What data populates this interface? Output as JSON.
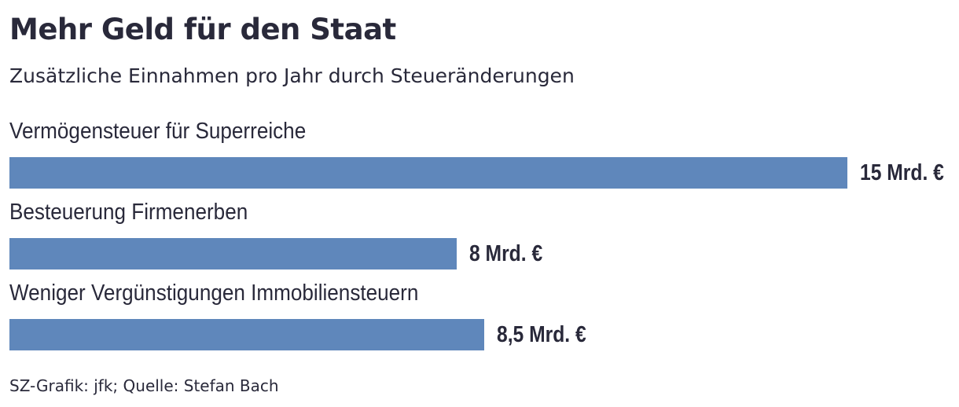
{
  "header": {
    "title": "Mehr Geld für den Staat",
    "subtitle": "Zusätzliche Einnahmen pro Jahr durch Steueränderungen"
  },
  "footer": {
    "source": "SZ-Grafik: jfk; Quelle: Stefan Bach"
  },
  "colors": {
    "bar": "#5f87bb",
    "text": "#29293a"
  },
  "chart_data": {
    "type": "bar",
    "orientation": "horizontal",
    "title": "Mehr Geld für den Staat",
    "subtitle": "Zusätzliche Einnahmen pro Jahr durch Steueränderungen",
    "categories": [
      "Vermögensteuer für Superreiche",
      "Besteuerung Firmenerben",
      "Weniger Vergünstigungen Immobiliensteuern"
    ],
    "values": [
      15,
      8,
      8.5
    ],
    "value_labels": [
      "15 Mrd. €",
      "8 Mrd. €",
      "8,5 Mrd. €"
    ],
    "xlim": [
      0,
      15
    ],
    "grid": false,
    "legend": "none"
  }
}
